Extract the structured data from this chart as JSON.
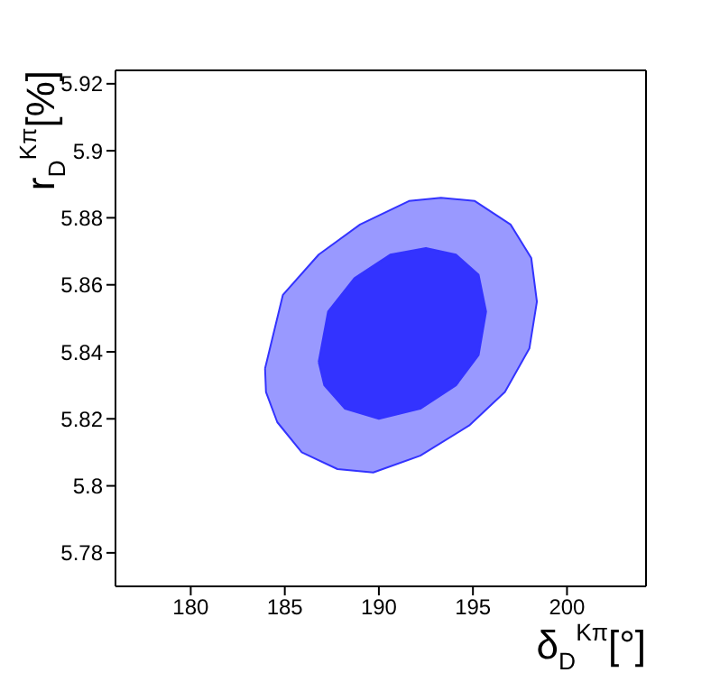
{
  "chart_data": {
    "type": "area",
    "xlabel": "δ$_{D}$$^{Kπ}$[°]",
    "ylabel": "r$_{D}$$^{Kπ}$[%]",
    "xlim": [
      176,
      204.2
    ],
    "ylim": [
      5.77,
      5.924
    ],
    "xticks": [
      180,
      185,
      190,
      195,
      200
    ],
    "yticks": [
      5.78,
      5.8,
      5.82,
      5.84,
      5.86,
      5.88,
      5.9,
      5.92
    ],
    "grid": false,
    "legend": false,
    "series": [
      {
        "color": "#9999ff",
        "x": [
          183.95,
          184.9,
          186.8,
          189.0,
          191.6,
          193.3,
          195.1,
          197.0,
          198.1,
          198.4,
          198.0,
          196.7,
          194.8,
          192.2,
          189.7,
          187.8,
          185.9,
          184.6,
          184.0
        ],
        "values": [
          5.835,
          5.857,
          5.869,
          5.878,
          5.885,
          5.886,
          5.885,
          5.878,
          5.868,
          5.855,
          5.841,
          5.828,
          5.818,
          5.809,
          5.804,
          5.805,
          5.81,
          5.819,
          5.828
        ]
      },
      {
        "color": "#3333ff",
        "x": [
          186.8,
          187.3,
          188.7,
          190.6,
          192.5,
          194.1,
          195.3,
          195.7,
          195.3,
          194.1,
          192.2,
          190.0,
          188.2,
          187.1
        ],
        "values": [
          5.837,
          5.852,
          5.862,
          5.869,
          5.871,
          5.869,
          5.863,
          5.852,
          5.839,
          5.83,
          5.823,
          5.82,
          5.823,
          5.83
        ]
      }
    ]
  }
}
